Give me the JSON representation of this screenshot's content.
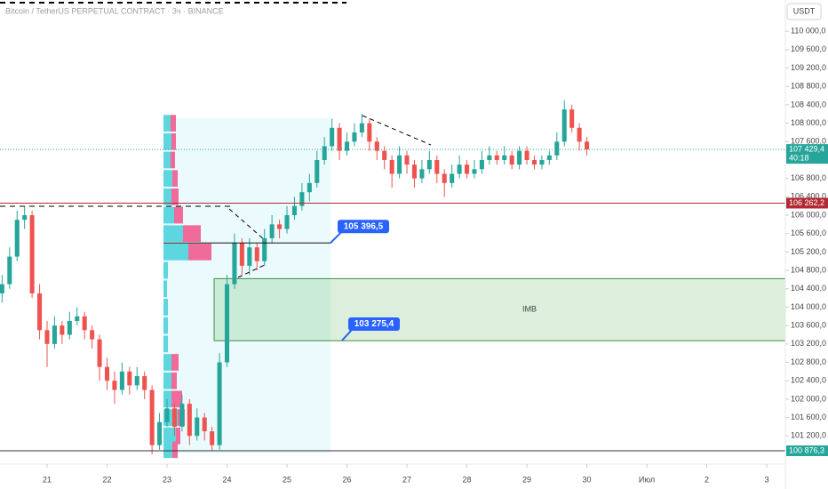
{
  "chart_data": {
    "type": "candlestick",
    "title": "Bitcoin / TetherUS PERPETUAL CONTRACT · 3ч · BINANCE",
    "currency": "USDT",
    "colors": {
      "up": "#26a69a",
      "down": "#ef5350"
    },
    "xlim": [
      20.215,
      33.31
    ],
    "ylim": [
      100780,
      110680
    ],
    "xticks": [
      21,
      22,
      23,
      24,
      25,
      26,
      27,
      28,
      29,
      30,
      {
        "value": 31,
        "label": "Июл"
      },
      {
        "value": 32,
        "label": "2"
      },
      {
        "value": 33,
        "label": "3"
      }
    ],
    "yticks": [
      {
        "value": 110000,
        "label": "110 000,0"
      },
      {
        "value": 109600,
        "label": "109 600,0"
      },
      {
        "value": 109200,
        "label": "109 200,0"
      },
      {
        "value": 108800,
        "label": "108 800,0"
      },
      {
        "value": 108400,
        "label": "108 400,0"
      },
      {
        "value": 108000,
        "label": "108 000,0"
      },
      {
        "value": 107600,
        "label": "107 600,0"
      },
      {
        "value": 106800,
        "label": "106 800,0"
      },
      {
        "value": 106400,
        "label": "106 400,0"
      },
      {
        "value": 106000,
        "label": "106 000,0"
      },
      {
        "value": 105600,
        "label": "105 600,0"
      },
      {
        "value": 105200,
        "label": "105 200,0"
      },
      {
        "value": 104800,
        "label": "104 800,0"
      },
      {
        "value": 104400,
        "label": "104 400,0"
      },
      {
        "value": 104000,
        "label": "104 000,0"
      },
      {
        "value": 103600,
        "label": "103 600,0"
      },
      {
        "value": 103200,
        "label": "103 200,0"
      },
      {
        "value": 102800,
        "label": "102 800,0"
      },
      {
        "value": 102400,
        "label": "102 400,0"
      },
      {
        "value": 102000,
        "label": "102 000,0"
      },
      {
        "value": 101600,
        "label": "101 600,0"
      },
      {
        "value": 101200,
        "label": "101 200,0"
      }
    ],
    "grid": false,
    "x": [
      20.25,
      20.375,
      20.5,
      20.625,
      20.75,
      20.875,
      21,
      21.125,
      21.25,
      21.375,
      21.5,
      21.625,
      21.75,
      21.875,
      22,
      22.125,
      22.25,
      22.375,
      22.5,
      22.625,
      22.75,
      22.875,
      23,
      23.125,
      23.25,
      23.375,
      23.5,
      23.625,
      23.75,
      23.875,
      24,
      24.125,
      24.25,
      24.375,
      24.5,
      24.625,
      24.75,
      24.875,
      25,
      25.125,
      25.25,
      25.375,
      25.5,
      25.625,
      25.75,
      25.875,
      26,
      26.125,
      26.25,
      26.375,
      26.5,
      26.625,
      26.75,
      26.875,
      27,
      27.125,
      27.25,
      27.375,
      27.5,
      27.625,
      27.75,
      27.875,
      28,
      28.125,
      28.25,
      28.375,
      28.5,
      28.625,
      28.75,
      28.875,
      29,
      29.125,
      29.25,
      29.375,
      29.5,
      29.625,
      29.75,
      29.875,
      30
    ],
    "ohlc": [
      [
        104300,
        104700,
        104100,
        104500
      ],
      [
        104500,
        105300,
        104400,
        105100
      ],
      [
        105100,
        106100,
        105000,
        105900
      ],
      [
        105900,
        106200,
        105700,
        106000
      ],
      [
        106000,
        106100,
        104200,
        104300
      ],
      [
        104300,
        104500,
        103300,
        103500
      ],
      [
        103500,
        103700,
        102700,
        103200
      ],
      [
        103200,
        103800,
        103100,
        103600
      ],
      [
        103600,
        103700,
        103200,
        103400
      ],
      [
        103400,
        103900,
        103300,
        103700
      ],
      [
        103700,
        104000,
        103600,
        103800
      ],
      [
        103800,
        103900,
        103300,
        103500
      ],
      [
        103500,
        103600,
        103100,
        103300
      ],
      [
        103300,
        103400,
        102400,
        102700
      ],
      [
        102700,
        102900,
        102200,
        102400
      ],
      [
        102400,
        102600,
        101900,
        102200
      ],
      [
        102200,
        102800,
        102100,
        102600
      ],
      [
        102600,
        102700,
        102100,
        102300
      ],
      [
        102300,
        102700,
        102200,
        102500
      ],
      [
        102500,
        102600,
        102000,
        102200
      ],
      [
        102200,
        102300,
        100800,
        101000
      ],
      [
        101000,
        101700,
        100900,
        101500
      ],
      [
        101500,
        102000,
        101400,
        101800
      ],
      [
        101800,
        101900,
        101200,
        101400
      ],
      [
        101400,
        102100,
        101300,
        101900
      ],
      [
        101900,
        102000,
        101000,
        101200
      ],
      [
        101200,
        101800,
        101100,
        101600
      ],
      [
        101600,
        101700,
        101100,
        101300
      ],
      [
        101300,
        101400,
        100880,
        101000
      ],
      [
        101000,
        103000,
        100900,
        102800
      ],
      [
        102800,
        104700,
        102700,
        104500
      ],
      [
        104500,
        105600,
        104400,
        105400
      ],
      [
        105400,
        105500,
        104700,
        104900
      ],
      [
        104900,
        105500,
        104700,
        105300
      ],
      [
        105300,
        105400,
        104800,
        105000
      ],
      [
        105000,
        105700,
        104900,
        105500
      ],
      [
        105500,
        106000,
        105400,
        105800
      ],
      [
        105800,
        105900,
        105500,
        105700
      ],
      [
        105700,
        106200,
        105600,
        106000
      ],
      [
        106000,
        106400,
        105900,
        106200
      ],
      [
        106200,
        106700,
        106100,
        106500
      ],
      [
        106500,
        106900,
        106300,
        106700
      ],
      [
        106700,
        107400,
        106600,
        107200
      ],
      [
        107200,
        107700,
        107100,
        107500
      ],
      [
        107500,
        108100,
        107400,
        107900
      ],
      [
        107900,
        108000,
        107200,
        107400
      ],
      [
        107400,
        107800,
        107300,
        107600
      ],
      [
        107600,
        108000,
        107500,
        107800
      ],
      [
        107800,
        108200,
        107700,
        108000
      ],
      [
        108000,
        108100,
        107400,
        107600
      ],
      [
        107600,
        107700,
        107200,
        107400
      ],
      [
        107400,
        107500,
        107000,
        107200
      ],
      [
        107200,
        107300,
        106600,
        106900
      ],
      [
        106900,
        107500,
        106800,
        107300
      ],
      [
        107300,
        107400,
        106900,
        107100
      ],
      [
        107100,
        107200,
        106600,
        106800
      ],
      [
        106800,
        107200,
        106700,
        107000
      ],
      [
        107000,
        107400,
        106900,
        107200
      ],
      [
        107200,
        107300,
        106700,
        106900
      ],
      [
        106900,
        107000,
        106400,
        106700
      ],
      [
        106700,
        107100,
        106600,
        106900
      ],
      [
        106900,
        107300,
        106800,
        107100
      ],
      [
        107100,
        107200,
        106800,
        106900
      ],
      [
        106900,
        107200,
        106800,
        107000
      ],
      [
        107000,
        107400,
        106900,
        107200
      ],
      [
        107200,
        107500,
        107100,
        107300
      ],
      [
        107300,
        107400,
        107100,
        107200
      ],
      [
        107200,
        107500,
        107100,
        107300
      ],
      [
        107300,
        107400,
        107000,
        107100
      ],
      [
        107100,
        107500,
        107000,
        107400
      ],
      [
        107400,
        107500,
        107100,
        107200
      ],
      [
        107200,
        107300,
        107000,
        107100
      ],
      [
        107100,
        107300,
        107000,
        107200
      ],
      [
        107200,
        107400,
        107100,
        107300
      ],
      [
        107300,
        107800,
        107200,
        107600
      ],
      [
        107600,
        108500,
        107500,
        108300
      ],
      [
        108300,
        108400,
        107800,
        107900
      ],
      [
        107900,
        108000,
        107400,
        107600
      ],
      [
        107600,
        107700,
        107300,
        107429.4
      ]
    ],
    "volume_profile": {
      "colors": {
        "up": "#5dd6e0",
        "down": "#f06a9a"
      },
      "prices": [
        108000,
        107600,
        107200,
        106800,
        106400,
        106000,
        105600,
        105200,
        104800,
        104400,
        104000,
        103600,
        103200,
        102800,
        102400,
        102000,
        101600,
        101200,
        100900
      ],
      "up": [
        8,
        9,
        8,
        10,
        9,
        12,
        22,
        28,
        5,
        4,
        5,
        5,
        5,
        9,
        9,
        9,
        16,
        14,
        10
      ],
      "down": [
        6,
        5,
        5,
        6,
        8,
        10,
        20,
        26,
        0,
        0,
        0,
        0,
        0,
        8,
        6,
        12,
        8,
        5,
        6
      ]
    },
    "lines": [
      {
        "value": 106262.2,
        "label": "106 262,2",
        "color": "#b22833"
      },
      {
        "value": 107429.4,
        "label": "107 429,4",
        "sub": "40:18",
        "color": "#26a69a"
      },
      {
        "value": 100876.3,
        "label": "100 876,3",
        "color": "#26a69a"
      }
    ],
    "callouts": [
      {
        "value": 105396.5,
        "label": "105 396,5"
      },
      {
        "value": 103275.4,
        "label": "103 275,4"
      }
    ],
    "zone": {
      "label": "IMB",
      "top": 104620,
      "bottom": 103270
    }
  }
}
